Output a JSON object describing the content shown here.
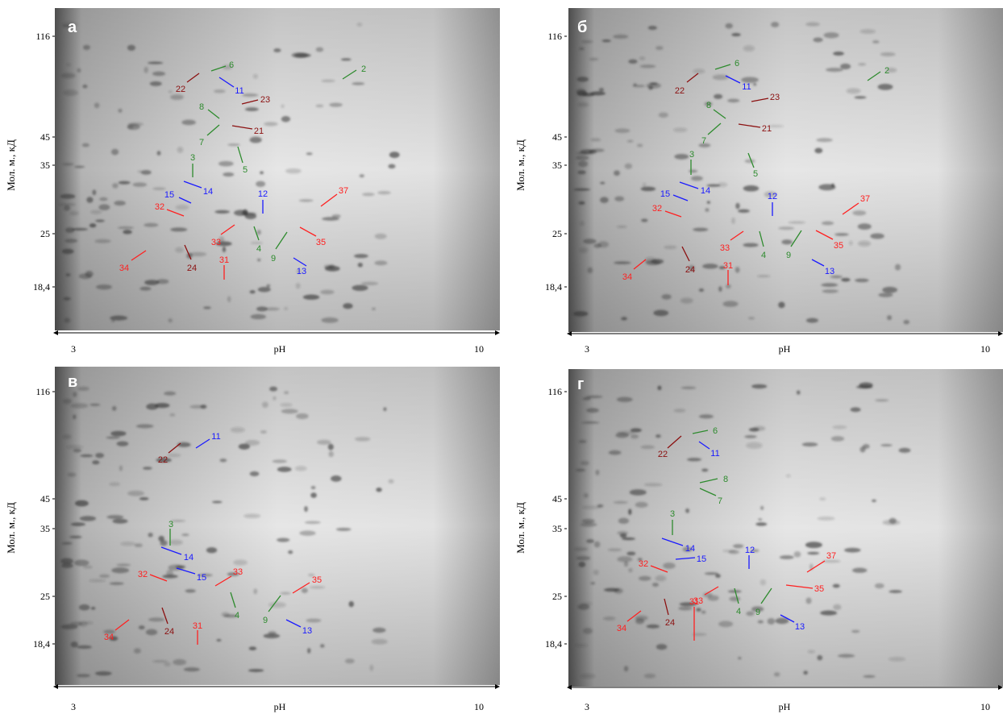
{
  "panels": [
    {
      "letter": "а",
      "y_axis_label": "Мол. м., кД",
      "y_ticks": [
        "116",
        "45",
        "35",
        "25",
        "18,4"
      ],
      "x_labels": [
        "3",
        "pH",
        "10"
      ],
      "spots": [
        {
          "label": "6",
          "color": "#2e8b2e"
        },
        {
          "label": "11",
          "color": "#1a1aff"
        },
        {
          "label": "22",
          "color": "#8b1010"
        },
        {
          "label": "2",
          "color": "#2e8b2e"
        },
        {
          "label": "23",
          "color": "#8b1010"
        },
        {
          "label": "8",
          "color": "#2e8b2e"
        },
        {
          "label": "21",
          "color": "#8b1010"
        },
        {
          "label": "7",
          "color": "#2e8b2e"
        },
        {
          "label": "5",
          "color": "#2e8b2e"
        },
        {
          "label": "3",
          "color": "#2e8b2e"
        },
        {
          "label": "14",
          "color": "#1a1aff"
        },
        {
          "label": "15",
          "color": "#1a1aff"
        },
        {
          "label": "12",
          "color": "#1a1aff"
        },
        {
          "label": "37",
          "color": "#ff2020"
        },
        {
          "label": "32",
          "color": "#ff2020"
        },
        {
          "label": "33",
          "color": "#ff2020"
        },
        {
          "label": "4",
          "color": "#2e8b2e"
        },
        {
          "label": "35",
          "color": "#ff2020"
        },
        {
          "label": "9",
          "color": "#2e8b2e"
        },
        {
          "label": "24",
          "color": "#8b1010"
        },
        {
          "label": "34",
          "color": "#ff2020"
        },
        {
          "label": "31",
          "color": "#ff2020"
        },
        {
          "label": "13",
          "color": "#1a1aff"
        }
      ]
    },
    {
      "letter": "б",
      "y_axis_label": "Мол. м., кД",
      "y_ticks": [
        "116",
        "45",
        "35",
        "25",
        "18,4"
      ],
      "x_labels": [
        "3",
        "pH",
        "10"
      ],
      "spots": [
        {
          "label": "6",
          "color": "#2e8b2e"
        },
        {
          "label": "11",
          "color": "#1a1aff"
        },
        {
          "label": "22",
          "color": "#8b1010"
        },
        {
          "label": "2",
          "color": "#2e8b2e"
        },
        {
          "label": "23",
          "color": "#8b1010"
        },
        {
          "label": "8",
          "color": "#2e8b2e"
        },
        {
          "label": "21",
          "color": "#8b1010"
        },
        {
          "label": "7",
          "color": "#2e8b2e"
        },
        {
          "label": "5",
          "color": "#2e8b2e"
        },
        {
          "label": "3",
          "color": "#2e8b2e"
        },
        {
          "label": "14",
          "color": "#1a1aff"
        },
        {
          "label": "15",
          "color": "#1a1aff"
        },
        {
          "label": "12",
          "color": "#1a1aff"
        },
        {
          "label": "37",
          "color": "#ff2020"
        },
        {
          "label": "32",
          "color": "#ff2020"
        },
        {
          "label": "33",
          "color": "#ff2020"
        },
        {
          "label": "4",
          "color": "#2e8b2e"
        },
        {
          "label": "35",
          "color": "#ff2020"
        },
        {
          "label": "9",
          "color": "#2e8b2e"
        },
        {
          "label": "24",
          "color": "#8b1010"
        },
        {
          "label": "34",
          "color": "#ff2020"
        },
        {
          "label": "31",
          "color": "#ff2020"
        },
        {
          "label": "13",
          "color": "#1a1aff"
        }
      ]
    },
    {
      "letter": "в",
      "y_axis_label": "Мол. м., кД",
      "y_ticks": [
        "116",
        "45",
        "35",
        "25",
        "18,4"
      ],
      "x_labels": [
        "3",
        "pH",
        "10"
      ],
      "spots": [
        {
          "label": "11",
          "color": "#1a1aff"
        },
        {
          "label": "22",
          "color": "#8b1010"
        },
        {
          "label": "3",
          "color": "#2e8b2e"
        },
        {
          "label": "14",
          "color": "#1a1aff"
        },
        {
          "label": "32",
          "color": "#ff2020"
        },
        {
          "label": "15",
          "color": "#1a1aff"
        },
        {
          "label": "33",
          "color": "#ff2020"
        },
        {
          "label": "35",
          "color": "#ff2020"
        },
        {
          "label": "4",
          "color": "#2e8b2e"
        },
        {
          "label": "9",
          "color": "#2e8b2e"
        },
        {
          "label": "24",
          "color": "#8b1010"
        },
        {
          "label": "34",
          "color": "#ff2020"
        },
        {
          "label": "31",
          "color": "#ff2020"
        },
        {
          "label": "13",
          "color": "#1a1aff"
        }
      ]
    },
    {
      "letter": "г",
      "y_axis_label": "Мол. м., кД",
      "y_ticks": [
        "116",
        "45",
        "35",
        "25",
        "18,4"
      ],
      "x_labels": [
        "3",
        "pH",
        "10"
      ],
      "spots": [
        {
          "label": "6",
          "color": "#2e8b2e"
        },
        {
          "label": "11",
          "color": "#1a1aff"
        },
        {
          "label": "22",
          "color": "#8b1010"
        },
        {
          "label": "8",
          "color": "#2e8b2e"
        },
        {
          "label": "7",
          "color": "#2e8b2e"
        },
        {
          "label": "3",
          "color": "#2e8b2e"
        },
        {
          "label": "14",
          "color": "#1a1aff"
        },
        {
          "label": "12",
          "color": "#1a1aff"
        },
        {
          "label": "37",
          "color": "#ff2020"
        },
        {
          "label": "15",
          "color": "#1a1aff"
        },
        {
          "label": "32",
          "color": "#ff2020"
        },
        {
          "label": "35",
          "color": "#ff2020"
        },
        {
          "label": "33",
          "color": "#ff2020"
        },
        {
          "label": "4",
          "color": "#2e8b2e"
        },
        {
          "label": "9",
          "color": "#2e8b2e"
        },
        {
          "label": "24",
          "color": "#8b1010"
        },
        {
          "label": "13",
          "color": "#1a1aff"
        },
        {
          "label": "34",
          "color": "#ff2020"
        },
        {
          "label": "31",
          "color": "#ff2020"
        }
      ]
    }
  ]
}
